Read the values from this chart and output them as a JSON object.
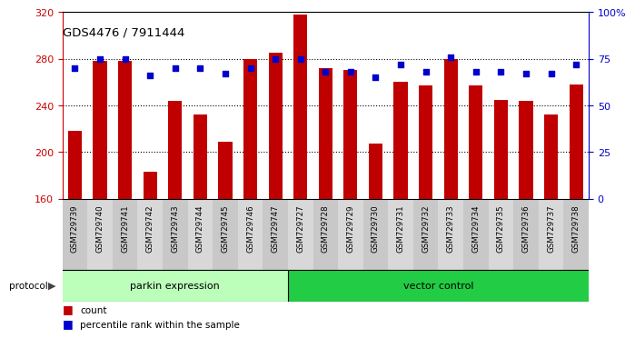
{
  "title": "GDS4476 / 7911444",
  "samples": [
    "GSM729739",
    "GSM729740",
    "GSM729741",
    "GSM729742",
    "GSM729743",
    "GSM729744",
    "GSM729745",
    "GSM729746",
    "GSM729747",
    "GSM729727",
    "GSM729728",
    "GSM729729",
    "GSM729730",
    "GSM729731",
    "GSM729732",
    "GSM729733",
    "GSM729734",
    "GSM729735",
    "GSM729736",
    "GSM729737",
    "GSM729738"
  ],
  "counts": [
    218,
    278,
    278,
    183,
    244,
    232,
    209,
    280,
    285,
    318,
    272,
    270,
    207,
    260,
    257,
    280,
    257,
    245,
    244,
    232,
    258
  ],
  "percentile": [
    70,
    75,
    75,
    66,
    70,
    70,
    67,
    70,
    75,
    75,
    68,
    68,
    65,
    72,
    68,
    76,
    68,
    68,
    67,
    67,
    72
  ],
  "parkin_count": 9,
  "vector_count": 12,
  "parkin_label": "parkin expression",
  "vector_label": "vector control",
  "protocol_label": "protocol",
  "left_ylim": [
    160,
    320
  ],
  "left_yticks": [
    160,
    200,
    240,
    280,
    320
  ],
  "right_ylim": [
    0,
    100
  ],
  "right_yticks": [
    0,
    25,
    50,
    75,
    100
  ],
  "bar_color": "#C00000",
  "dot_color": "#0000CD",
  "bar_width": 0.55,
  "parkin_bg": "#BBFFBB",
  "vector_bg": "#22CC44",
  "grid_color": "#000000",
  "tick_label_color_left": "#CC0000",
  "tick_label_color_right": "#0000CD",
  "legend_count_label": "count",
  "legend_percentile_label": "percentile rank within the sample",
  "xlabel_bg": "#CCCCCC"
}
